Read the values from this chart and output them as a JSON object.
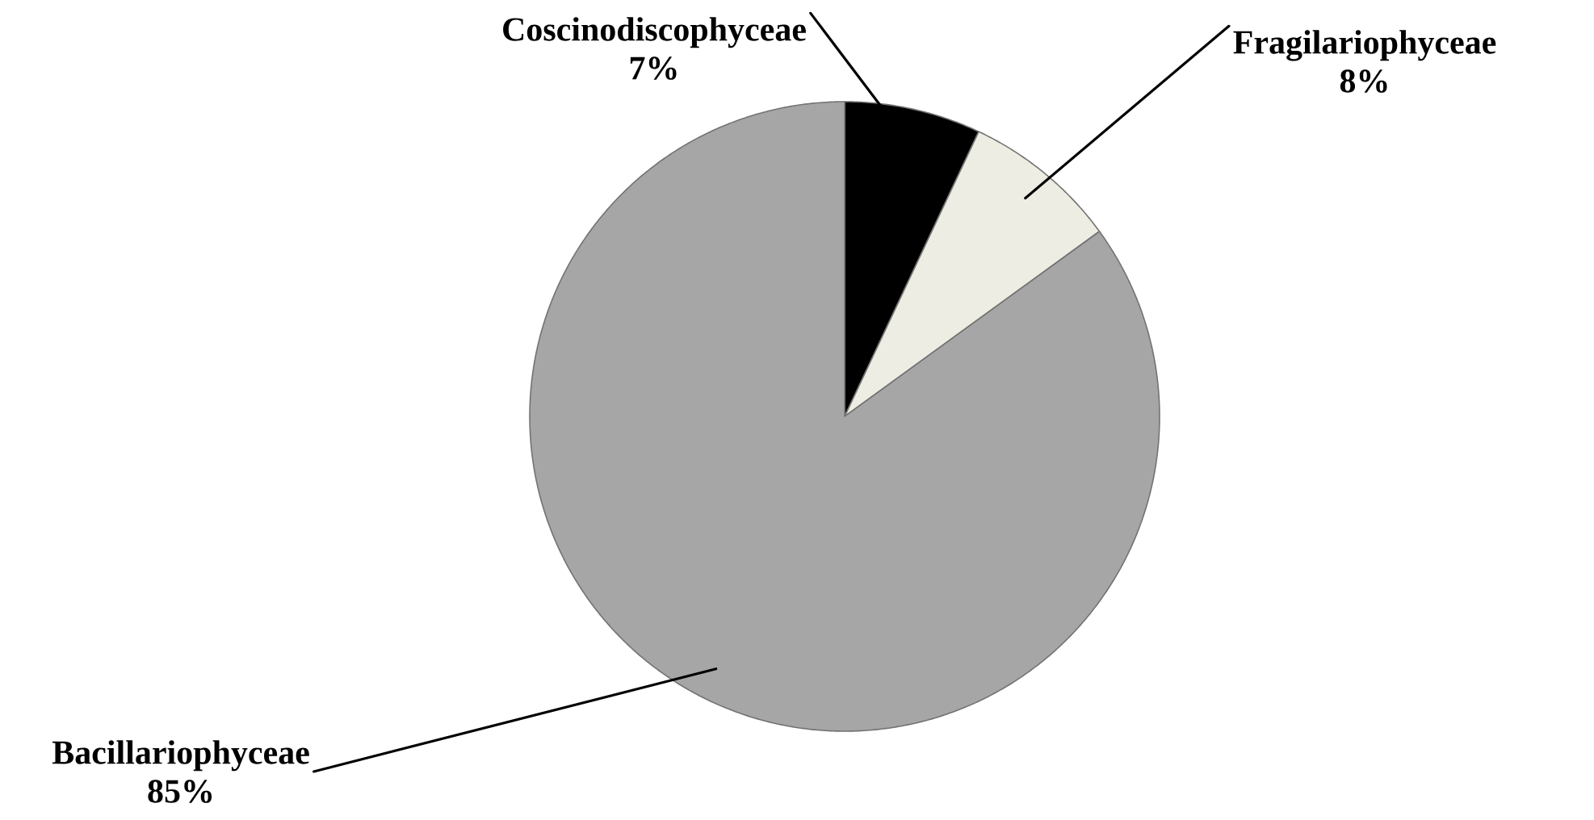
{
  "chart_data": {
    "type": "pie",
    "categories": [
      "Coscinodiscophyceae",
      "Fragilariophyceae",
      "Bacillariophyceae"
    ],
    "values": [
      7,
      8,
      85
    ],
    "colors": [
      "#000000",
      "#eeede3",
      "#a6a6a6"
    ],
    "value_labels": [
      "7%",
      "8%",
      "85%"
    ]
  }
}
